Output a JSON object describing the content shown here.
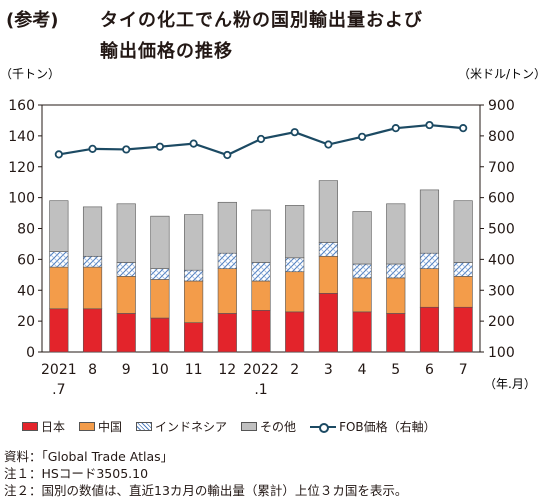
{
  "title": {
    "prefix": "(参考)",
    "line1": "タイの化工でん粉の国別輸出量および",
    "line2": "輸出価格の推移"
  },
  "legend": {
    "japan": "日本",
    "china": "中国",
    "indonesia": "インドネシア",
    "other": "その他",
    "fob": "FOB価格（右軸）"
  },
  "footnotes": {
    "source": "資料：「Global Trade Atlas」",
    "note1": "注１：HSコード3505.10",
    "note2": "注２：国別の数値は、直近13カ月の輸出量（累計）上位３カ国を表示。"
  },
  "colors": {
    "japan": "#e3242b",
    "china": "#f39c4a",
    "indonesia_pattern": "#4f7fc0",
    "other": "#c0c0c0",
    "fob_line": "#1c4a63"
  },
  "chart_data": {
    "type": "bar",
    "stacked": true,
    "categories": [
      "2021\n.7",
      "8",
      "9",
      "10",
      "11",
      "12",
      "2022\n.1",
      "2",
      "3",
      "4",
      "5",
      "6",
      "7"
    ],
    "series": [
      {
        "name": "日本",
        "values": [
          28,
          28,
          25,
          22,
          19,
          25,
          27,
          26,
          38,
          26,
          25,
          29,
          29
        ]
      },
      {
        "name": "中国",
        "values": [
          27,
          27,
          24,
          25,
          27,
          29,
          19,
          26,
          24,
          22,
          23,
          25,
          20
        ]
      },
      {
        "name": "インドネシア",
        "values": [
          10,
          7,
          9,
          7,
          7,
          10,
          12,
          9,
          9,
          9,
          9,
          10,
          9
        ]
      },
      {
        "name": "その他",
        "values": [
          33,
          32,
          38,
          34,
          36,
          33,
          34,
          34,
          40,
          34,
          39,
          41,
          40
        ]
      }
    ],
    "line_series": {
      "name": "FOB価格（右軸）",
      "axis": "right",
      "values": [
        740,
        758,
        756,
        765,
        775,
        738,
        790,
        812,
        772,
        797,
        825,
        835,
        825
      ]
    },
    "ylabel": "（千トン）",
    "y2label": "（米ドル/トン）",
    "xlabel": "（年.月）",
    "ylim": [
      0,
      160
    ],
    "y2lim": [
      100,
      900
    ],
    "yticks": [
      0,
      20,
      40,
      60,
      80,
      100,
      120,
      140,
      160
    ],
    "y2ticks": [
      100,
      200,
      300,
      400,
      500,
      600,
      700,
      800,
      900
    ],
    "grid": false
  }
}
